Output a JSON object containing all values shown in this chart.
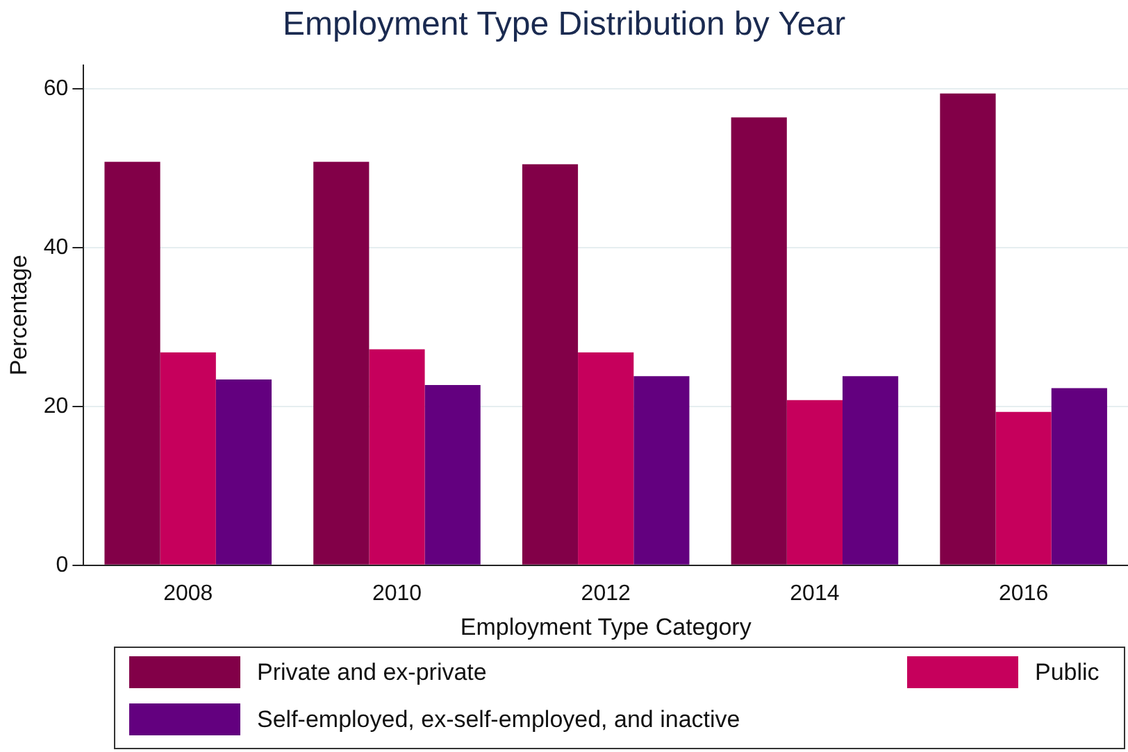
{
  "chart_data": {
    "type": "bar",
    "title": "Employment Type Distribution by Year",
    "xlabel": "Employment Type Category",
    "ylabel": "Percentage",
    "categories": [
      "2008",
      "2010",
      "2012",
      "2014",
      "2016"
    ],
    "series": [
      {
        "name": "Private and ex-private",
        "color": "#820048",
        "values": [
          50.8,
          50.8,
          50.5,
          56.4,
          59.4
        ]
      },
      {
        "name": "Public",
        "color": "#c6005c",
        "values": [
          26.8,
          27.2,
          26.8,
          20.8,
          19.3
        ]
      },
      {
        "name": "Self-employed, ex-self-employed, and inactive",
        "color": "#63007f",
        "values": [
          23.4,
          22.7,
          23.8,
          23.8,
          22.3
        ]
      }
    ],
    "ylim": [
      0,
      63
    ],
    "yticks": [
      0,
      20,
      40,
      60
    ],
    "grid": "y",
    "legend": "bottom"
  }
}
